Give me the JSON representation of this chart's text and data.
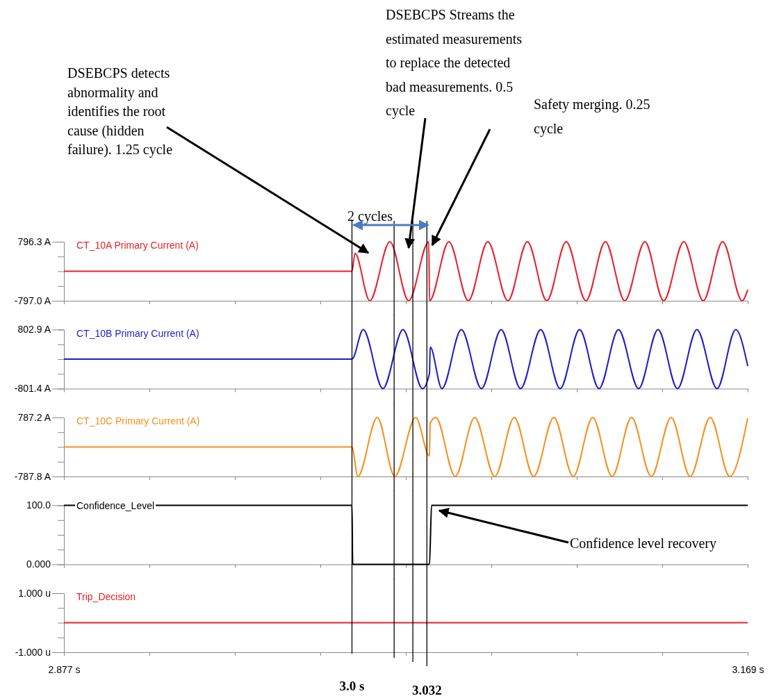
{
  "chart_data": [
    {
      "type": "line",
      "xlim": [
        2.877,
        3.169
      ],
      "xticks": [
        {
          "value": 2.877,
          "label": null
        },
        {
          "value": 2.9135,
          "label": null
        },
        {
          "value": 2.95,
          "label": null
        },
        {
          "value": 2.9865,
          "label": null
        },
        {
          "value": 3.023,
          "label": null
        },
        {
          "value": 3.0595,
          "label": null
        },
        {
          "value": 3.096,
          "label": null
        },
        {
          "value": 3.1325,
          "label": null
        },
        {
          "value": 3.169,
          "label": null
        }
      ],
      "tick_labels": "y",
      "ylim": [
        -797.0,
        796.3
      ],
      "yticks": [
        {
          "value": -797.0,
          "label": "-797.0 A"
        },
        {
          "value": -398.675,
          "label": null
        },
        {
          "value": -0.35,
          "label": null
        },
        {
          "value": 397.975,
          "label": null
        },
        {
          "value": 796.3,
          "label": "796.3 A"
        }
      ],
      "series": [
        {
          "name": "CT_10A Primary Current  (A)",
          "color": "#e8202a",
          "x": [
            2.877,
            3.0,
            3.0013,
            3.0076,
            3.0162,
            3.0242,
            3.0328,
            3.0331,
            3.0414,
            3.0497,
            3.058,
            3.0666,
            3.0749,
            3.0832,
            3.0915,
            3.0999,
            3.1082,
            3.1165,
            3.1251,
            3.1331,
            3.1417,
            3.15,
            3.1583,
            3.1666,
            3.169
          ],
          "values": [
            0,
            0,
            480,
            -797,
            796,
            -797,
            796,
            -797,
            796,
            -797,
            796,
            -797,
            796,
            -797,
            796,
            -797,
            796,
            -797,
            796,
            -797,
            796,
            -797,
            796,
            -797,
            -500
          ]
        }
      ],
      "ref_lines": [
        {
          "axis": "x",
          "value": 3.0,
          "label": null,
          "color": "#000000"
        },
        {
          "axis": "x",
          "value": 3.018,
          "label": null,
          "color": "#000000"
        },
        {
          "axis": "x",
          "value": 3.026,
          "label": null,
          "color": "#000000"
        },
        {
          "axis": "x",
          "value": 3.032,
          "label": null,
          "color": "#000000"
        }
      ],
      "annotations": [
        "DSEBCPS detects abnormality and identifies the root cause (hidden failure). 1.25 cycle",
        "DSEBCPS Streams the estimated measurements to replace the detected bad measurements. 0.5 cycle",
        "Safety merging. 0.25 cycle",
        "2 cycles"
      ]
    },
    {
      "type": "line",
      "xlim": [
        2.877,
        3.169
      ],
      "xticks": [
        {
          "value": 2.877,
          "label": null
        },
        {
          "value": 2.9135,
          "label": null
        },
        {
          "value": 2.95,
          "label": null
        },
        {
          "value": 2.9865,
          "label": null
        },
        {
          "value": 3.023,
          "label": null
        },
        {
          "value": 3.0595,
          "label": null
        },
        {
          "value": 3.096,
          "label": null
        },
        {
          "value": 3.1325,
          "label": null
        },
        {
          "value": 3.169,
          "label": null
        }
      ],
      "tick_labels": "y",
      "ylim": [
        -801.4,
        802.9
      ],
      "yticks": [
        {
          "value": -801.4,
          "label": "-801.4 A"
        },
        {
          "value": -400.325,
          "label": null
        },
        {
          "value": 0.75,
          "label": null
        },
        {
          "value": 401.825,
          "label": null
        },
        {
          "value": 802.9,
          "label": "802.9 A"
        }
      ],
      "series": [
        {
          "name": "CT_10B Primary Current  (A)",
          "color": "#1c1ccc",
          "x": [
            2.877,
            3.0,
            3.0048,
            3.0132,
            3.0218,
            3.0301,
            3.0331,
            3.0334,
            3.0384,
            3.0467,
            3.0553,
            3.0637,
            3.072,
            3.0806,
            3.0889,
            3.0972,
            3.1055,
            3.1138,
            3.1224,
            3.1307,
            3.139,
            3.1473,
            3.1559,
            3.1639,
            3.169
          ],
          "values": [
            0,
            0,
            802,
            -801,
            802,
            -801,
            -390,
            330,
            -801,
            802,
            -801,
            802,
            -801,
            802,
            -801,
            802,
            -801,
            802,
            -801,
            802,
            -801,
            802,
            -801,
            802,
            -190
          ]
        }
      ],
      "ref_lines": [
        {
          "axis": "x",
          "value": 3.0,
          "label": null,
          "color": "#000000"
        },
        {
          "axis": "x",
          "value": 3.018,
          "label": null,
          "color": "#000000"
        },
        {
          "axis": "x",
          "value": 3.026,
          "label": null,
          "color": "#000000"
        },
        {
          "axis": "x",
          "value": 3.032,
          "label": null,
          "color": "#000000"
        }
      ]
    },
    {
      "type": "line",
      "xlim": [
        2.877,
        3.169
      ],
      "xticks": [
        {
          "value": 2.877,
          "label": null
        },
        {
          "value": 2.9135,
          "label": null
        },
        {
          "value": 2.95,
          "label": null
        },
        {
          "value": 2.9865,
          "label": null
        },
        {
          "value": 3.023,
          "label": null
        },
        {
          "value": 3.0595,
          "label": null
        },
        {
          "value": 3.096,
          "label": null
        },
        {
          "value": 3.1325,
          "label": null
        },
        {
          "value": 3.169,
          "label": null
        }
      ],
      "tick_labels": "y",
      "ylim": [
        -787.8,
        787.2
      ],
      "yticks": [
        {
          "value": -787.8,
          "label": "-787.8 A"
        },
        {
          "value": -394.05,
          "label": null
        },
        {
          "value": -0.3,
          "label": null
        },
        {
          "value": 393.45,
          "label": null
        },
        {
          "value": 787.2,
          "label": "787.2 A"
        }
      ],
      "series": [
        {
          "name": "CT_10C Primary Current  (A)",
          "color": "#f5901e",
          "x": [
            2.877,
            3.0,
            3.0025,
            3.0108,
            3.0183,
            3.0272,
            3.0331,
            3.0334,
            3.0358,
            3.0441,
            3.0524,
            3.061,
            3.0693,
            3.0776,
            3.0862,
            3.0945,
            3.1028,
            3.1111,
            3.1194,
            3.1278,
            3.1363,
            3.1444,
            3.153,
            3.1613,
            3.169
          ],
          "values": [
            0,
            0,
            -787,
            787,
            -787,
            787,
            -240,
            630,
            787,
            -787,
            787,
            -787,
            787,
            -787,
            787,
            -787,
            787,
            -787,
            787,
            -787,
            787,
            -787,
            787,
            -787,
            770
          ]
        }
      ],
      "ref_lines": [
        {
          "axis": "x",
          "value": 3.0,
          "label": null,
          "color": "#000000"
        },
        {
          "axis": "x",
          "value": 3.018,
          "label": null,
          "color": "#000000"
        },
        {
          "axis": "x",
          "value": 3.026,
          "label": null,
          "color": "#000000"
        },
        {
          "axis": "x",
          "value": 3.032,
          "label": null,
          "color": "#000000"
        }
      ]
    },
    {
      "type": "line",
      "xlim": [
        2.877,
        3.169
      ],
      "xticks": [
        {
          "value": 2.877,
          "label": null
        },
        {
          "value": 2.9135,
          "label": null
        },
        {
          "value": 2.95,
          "label": null
        },
        {
          "value": 2.9865,
          "label": null
        },
        {
          "value": 3.023,
          "label": null
        },
        {
          "value": 3.0595,
          "label": null
        },
        {
          "value": 3.096,
          "label": null
        },
        {
          "value": 3.1325,
          "label": null
        },
        {
          "value": 3.169,
          "label": null
        }
      ],
      "tick_labels": "y",
      "ylim": [
        0,
        100
      ],
      "yticks": [
        {
          "value": 0,
          "label": "0.000"
        },
        {
          "value": 25,
          "label": null
        },
        {
          "value": 50,
          "label": null
        },
        {
          "value": 75,
          "label": null
        },
        {
          "value": 100,
          "label": "100.0"
        }
      ],
      "series": [
        {
          "name": "Confidence_Level",
          "color": "#000000",
          "x": [
            2.877,
            3.0,
            3.0003,
            3.0331,
            3.034,
            3.169
          ],
          "values": [
            100,
            100,
            0,
            0,
            100,
            100
          ]
        }
      ],
      "ref_lines": [
        {
          "axis": "x",
          "value": 3.0,
          "label": null,
          "color": "#000000"
        },
        {
          "axis": "x",
          "value": 3.018,
          "label": null,
          "color": "#000000"
        },
        {
          "axis": "x",
          "value": 3.026,
          "label": null,
          "color": "#000000"
        },
        {
          "axis": "x",
          "value": 3.032,
          "label": null,
          "color": "#000000"
        }
      ],
      "annotations": [
        "Confidence level recovery"
      ]
    },
    {
      "type": "line",
      "xlim": [
        2.877,
        3.169
      ],
      "xticks": [
        {
          "value": 2.877,
          "label": "2.877 s"
        },
        {
          "value": 2.9135,
          "label": null
        },
        {
          "value": 2.95,
          "label": null
        },
        {
          "value": 2.9865,
          "label": null
        },
        {
          "value": 3.023,
          "label": null
        },
        {
          "value": 3.0595,
          "label": null
        },
        {
          "value": 3.096,
          "label": null
        },
        {
          "value": 3.1325,
          "label": null
        },
        {
          "value": 3.169,
          "label": "3.169 s"
        }
      ],
      "ylim": [
        -1,
        1
      ],
      "yticks": [
        {
          "value": -1,
          "label": "-1.000 u"
        },
        {
          "value": -0.5,
          "label": null
        },
        {
          "value": 0,
          "label": null
        },
        {
          "value": 0.5,
          "label": null
        },
        {
          "value": 1,
          "label": "1.000 u"
        }
      ],
      "series": [
        {
          "name": "Trip_Decision",
          "color": "#e8202a",
          "x": [
            2.877,
            3.169
          ],
          "values": [
            0,
            0
          ]
        }
      ],
      "ref_lines": [
        {
          "axis": "x",
          "value": 3.0,
          "label": "3.0 s",
          "color": "#000000"
        },
        {
          "axis": "x",
          "value": 3.018,
          "label": null,
          "color": "#000000"
        },
        {
          "axis": "x",
          "value": 3.026,
          "label": null,
          "color": "#000000"
        },
        {
          "axis": "x",
          "value": 3.032,
          "label": "3.032",
          "color": "#000000"
        }
      ]
    }
  ]
}
